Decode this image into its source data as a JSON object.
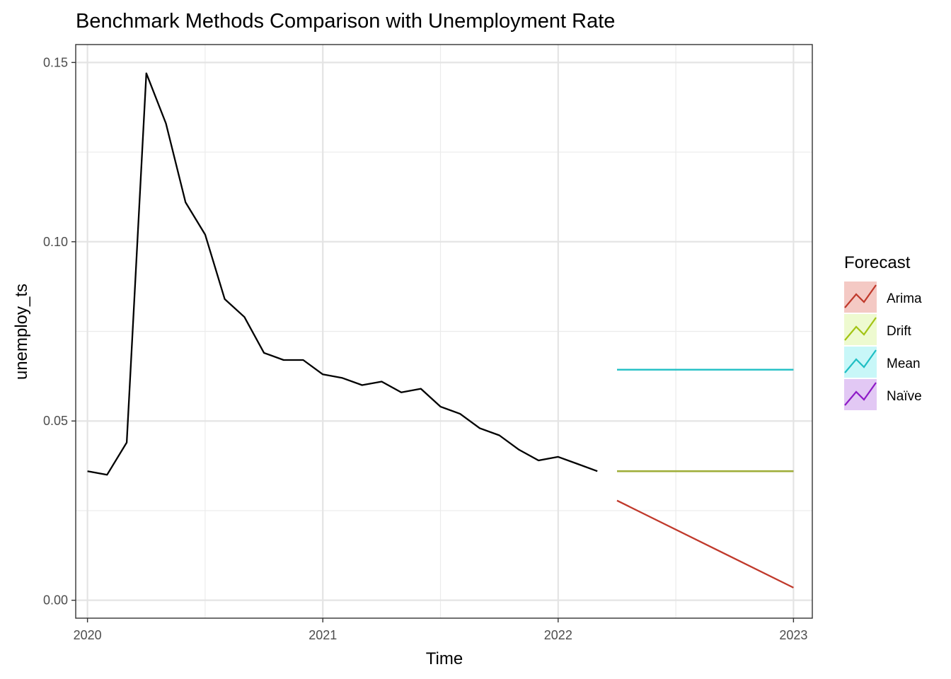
{
  "chart_data": {
    "type": "line",
    "title": "Benchmark Methods Comparison with Unemployment Rate",
    "xlabel": "Time",
    "ylabel": "unemploy_ts",
    "xlim": [
      2019.95,
      2023.08
    ],
    "ylim": [
      -0.005,
      0.155
    ],
    "x_ticks": [
      2020,
      2021,
      2022,
      2023
    ],
    "x_tick_labels": [
      "2020",
      "2021",
      "2022",
      "2023"
    ],
    "y_ticks": [
      0.0,
      0.05,
      0.1,
      0.15
    ],
    "y_tick_labels": [
      "0.00",
      "0.05",
      "0.10",
      "0.15"
    ],
    "grid": true,
    "legend": {
      "title": "Forecast",
      "position": "right"
    },
    "observed": {
      "color": "#000000",
      "x": [
        2020.0,
        2020.0833,
        2020.1667,
        2020.25,
        2020.3333,
        2020.4167,
        2020.5,
        2020.5833,
        2020.6667,
        2020.75,
        2020.8333,
        2020.9167,
        2021.0,
        2021.0833,
        2021.1667,
        2021.25,
        2021.3333,
        2021.4167,
        2021.5,
        2021.5833,
        2021.6667,
        2021.75,
        2021.8333,
        2021.9167,
        2022.0,
        2022.0833,
        2022.1667
      ],
      "y": [
        0.036,
        0.035,
        0.044,
        0.147,
        0.133,
        0.111,
        0.102,
        0.084,
        0.079,
        0.069,
        0.067,
        0.067,
        0.063,
        0.062,
        0.06,
        0.061,
        0.058,
        0.059,
        0.054,
        0.052,
        0.048,
        0.046,
        0.042,
        0.039,
        0.04,
        0.038,
        0.036
      ]
    },
    "series": [
      {
        "name": "Arima",
        "color": "#c0392b",
        "fill": "#f4c9c4",
        "x": [
          2022.25,
          2023.0
        ],
        "y": [
          0.0278,
          0.0035
        ]
      },
      {
        "name": "Drift",
        "color": "#a3c414",
        "fill": "#eefad0",
        "x": [
          2022.25,
          2023.0
        ],
        "y": [
          0.036,
          0.036
        ]
      },
      {
        "name": "Mean",
        "color": "#1fbfc4",
        "fill": "#c8f7f8",
        "x": [
          2022.25,
          2023.0
        ],
        "y": [
          0.0643,
          0.0643
        ]
      },
      {
        "name": "Naïve",
        "color": "#8e1bc7",
        "fill": "#e2c8f4",
        "x": [
          2022.25,
          2023.0
        ],
        "y": [
          0.036,
          0.036
        ]
      }
    ],
    "overlay_color": "#9fae3a"
  }
}
